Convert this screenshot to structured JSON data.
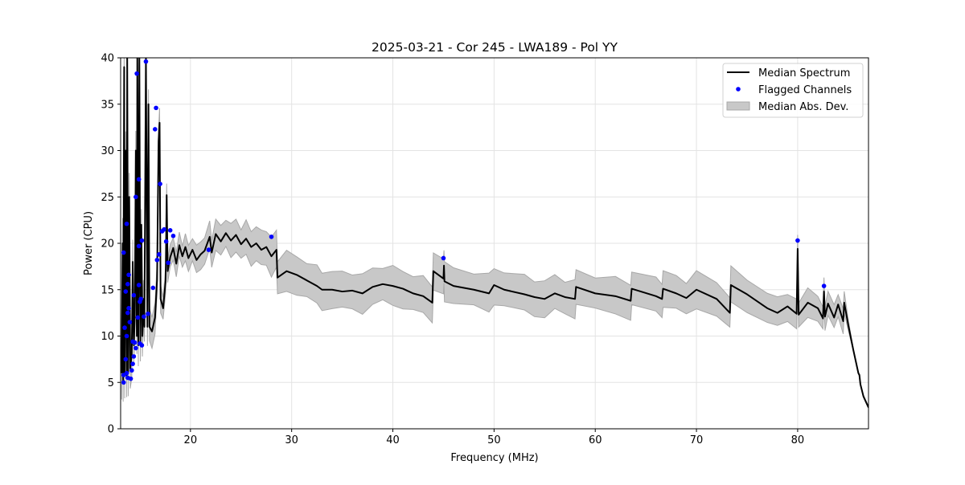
{
  "chart_data": {
    "type": "line",
    "title": "2025-03-21 - Cor 245 - LWA189 - Pol YY",
    "xlabel": "Frequency (MHz)",
    "ylabel": "Power (CPU)",
    "xlim": [
      13.1,
      87.0
    ],
    "ylim": [
      0,
      40
    ],
    "xticks": [
      20,
      30,
      40,
      50,
      60,
      70,
      80
    ],
    "yticks": [
      0,
      5,
      10,
      15,
      20,
      25,
      30,
      35,
      40
    ],
    "grid": true,
    "legend_position": "top-right",
    "legend": [
      "Median Spectrum",
      "Flagged Channels",
      "Median Abs. Dev."
    ],
    "colors": {
      "median": "#000000",
      "flagged": "#0000ff",
      "mad_fill": "#c8c8c8",
      "mad_edge": "#a8a8a8",
      "grid": "#e3e3e3"
    },
    "median_spectrum": [
      [
        13.2,
        6
      ],
      [
        13.3,
        20
      ],
      [
        13.35,
        5
      ],
      [
        13.45,
        39
      ],
      [
        13.5,
        6
      ],
      [
        13.6,
        30
      ],
      [
        13.7,
        5.5
      ],
      [
        13.75,
        40
      ],
      [
        13.85,
        6
      ],
      [
        13.95,
        25
      ],
      [
        14.05,
        6.5
      ],
      [
        14.2,
        8
      ],
      [
        14.3,
        18
      ],
      [
        14.4,
        9
      ],
      [
        14.5,
        12
      ],
      [
        14.6,
        30
      ],
      [
        14.7,
        10
      ],
      [
        14.75,
        40
      ],
      [
        14.85,
        9
      ],
      [
        14.95,
        40
      ],
      [
        15.05,
        9
      ],
      [
        15.15,
        22
      ],
      [
        15.25,
        10
      ],
      [
        15.35,
        14
      ],
      [
        15.45,
        11
      ],
      [
        15.6,
        40
      ],
      [
        15.75,
        11
      ],
      [
        15.85,
        35
      ],
      [
        15.95,
        11
      ],
      [
        16.2,
        10.5
      ],
      [
        16.5,
        12
      ],
      [
        16.7,
        16
      ],
      [
        16.85,
        31
      ],
      [
        16.95,
        33
      ],
      [
        17.05,
        14
      ],
      [
        17.3,
        13
      ],
      [
        17.55,
        16
      ],
      [
        17.65,
        25.2
      ],
      [
        17.75,
        17
      ],
      [
        18.0,
        18.5
      ],
      [
        18.3,
        19.5
      ],
      [
        18.6,
        17.8
      ],
      [
        18.9,
        19.8
      ],
      [
        19.2,
        18.6
      ],
      [
        19.5,
        19.6
      ],
      [
        19.8,
        18.4
      ],
      [
        20.2,
        19.3
      ],
      [
        20.6,
        18.2
      ],
      [
        21.0,
        18.8
      ],
      [
        21.4,
        19.2
      ],
      [
        21.9,
        20.7
      ],
      [
        22.1,
        19
      ],
      [
        22.5,
        21
      ],
      [
        23.0,
        20.2
      ],
      [
        23.5,
        21.1
      ],
      [
        24.0,
        20.3
      ],
      [
        24.5,
        20.9
      ],
      [
        25.0,
        19.9
      ],
      [
        25.5,
        20.5
      ],
      [
        26.0,
        19.6
      ],
      [
        26.5,
        20
      ],
      [
        27.0,
        19.3
      ],
      [
        27.5,
        19.6
      ],
      [
        28.0,
        18.6
      ],
      [
        28.5,
        19.3
      ],
      [
        28.6,
        16.3
      ],
      [
        29.5,
        17
      ],
      [
        30.5,
        16.6
      ],
      [
        31.5,
        16
      ],
      [
        32.5,
        15.4
      ],
      [
        33.0,
        15
      ],
      [
        34.0,
        15
      ],
      [
        35.0,
        14.8
      ],
      [
        36.0,
        14.9
      ],
      [
        37.0,
        14.6
      ],
      [
        38.0,
        15.3
      ],
      [
        39.0,
        15.6
      ],
      [
        40.0,
        15.4
      ],
      [
        41.0,
        15.1
      ],
      [
        42.0,
        14.6
      ],
      [
        43.0,
        14.3
      ],
      [
        43.9,
        13.6
      ],
      [
        44.0,
        17
      ],
      [
        45.0,
        16.2
      ],
      [
        45.05,
        17.6
      ],
      [
        45.1,
        15.9
      ],
      [
        46.0,
        15.4
      ],
      [
        48.0,
        15
      ],
      [
        49.5,
        14.6
      ],
      [
        50.0,
        15.5
      ],
      [
        51.0,
        15
      ],
      [
        53.0,
        14.5
      ],
      [
        54.0,
        14.2
      ],
      [
        55.0,
        14
      ],
      [
        56.0,
        14.6
      ],
      [
        57.0,
        14.2
      ],
      [
        58.0,
        14
      ],
      [
        58.1,
        15.3
      ],
      [
        60.0,
        14.6
      ],
      [
        62.0,
        14.3
      ],
      [
        63.5,
        13.8
      ],
      [
        63.6,
        15.1
      ],
      [
        66.0,
        14.3
      ],
      [
        66.6,
        14
      ],
      [
        66.7,
        15.1
      ],
      [
        68.0,
        14.6
      ],
      [
        69.0,
        14.1
      ],
      [
        70.0,
        15
      ],
      [
        72.0,
        14
      ],
      [
        73.3,
        12.5
      ],
      [
        73.4,
        15.5
      ],
      [
        75.0,
        14.5
      ],
      [
        77.0,
        13
      ],
      [
        78.0,
        12.5
      ],
      [
        79.0,
        13.2
      ],
      [
        79.9,
        12.4
      ],
      [
        80.0,
        19.4
      ],
      [
        80.1,
        12.3
      ],
      [
        81.0,
        13.6
      ],
      [
        82.0,
        13
      ],
      [
        82.5,
        11.9
      ],
      [
        82.6,
        14.8
      ],
      [
        82.7,
        12.1
      ],
      [
        83.0,
        13.5
      ],
      [
        83.6,
        12
      ],
      [
        84.0,
        13.4
      ],
      [
        84.5,
        11.6
      ],
      [
        84.6,
        13.6
      ],
      [
        85.0,
        11.2
      ],
      [
        85.5,
        8.5
      ],
      [
        86.0,
        6
      ],
      [
        86.1,
        5.8
      ],
      [
        86.2,
        4.8
      ],
      [
        86.5,
        3.5
      ],
      [
        87.0,
        2.3
      ]
    ],
    "mad_halfwidth": [
      [
        13.1,
        2.5
      ],
      [
        18.0,
        1.2
      ],
      [
        21.8,
        1.5
      ],
      [
        28.6,
        2.0
      ],
      [
        73.4,
        1.8
      ],
      [
        84.8,
        1.2
      ],
      [
        85.2,
        0.1
      ]
    ],
    "flagged_channels": [
      [
        13.4,
        19.0
      ],
      [
        13.7,
        22.1
      ],
      [
        13.8,
        15.6
      ],
      [
        13.9,
        16.6
      ],
      [
        13.6,
        14.8
      ],
      [
        13.5,
        10.9
      ],
      [
        13.7,
        10
      ],
      [
        13.8,
        12.5
      ],
      [
        13.9,
        13
      ],
      [
        13.6,
        7.5
      ],
      [
        13.7,
        6
      ],
      [
        13.8,
        5.5
      ],
      [
        13.4,
        5.8
      ],
      [
        13.4,
        5.0
      ],
      [
        14.1,
        5.4
      ],
      [
        14.2,
        6.3
      ],
      [
        14.4,
        14.4
      ],
      [
        14.5,
        9.3
      ],
      [
        14.6,
        25
      ],
      [
        14.7,
        38.3
      ],
      [
        14.9,
        26.9
      ],
      [
        14.9,
        19.7
      ],
      [
        14.8,
        12
      ],
      [
        14.9,
        15.5
      ],
      [
        15.1,
        14
      ],
      [
        15.0,
        13.7
      ],
      [
        15.2,
        20.3
      ],
      [
        15.6,
        39.6
      ],
      [
        15.4,
        12.1
      ],
      [
        15.8,
        12.4
      ],
      [
        16.3,
        15.2
      ],
      [
        16.5,
        32.3
      ],
      [
        16.6,
        34.6
      ],
      [
        16.7,
        18.2
      ],
      [
        16.9,
        18.8
      ],
      [
        17.0,
        26.4
      ],
      [
        17.2,
        21.3
      ],
      [
        17.4,
        21.5
      ],
      [
        17.6,
        20.2
      ],
      [
        17.8,
        17.9
      ],
      [
        18.0,
        21.4
      ],
      [
        18.3,
        20.8
      ],
      [
        21.8,
        19.3
      ],
      [
        28.0,
        20.7
      ],
      [
        45.0,
        18.4
      ],
      [
        80.0,
        20.3
      ],
      [
        82.6,
        15.4
      ],
      [
        14.3,
        7.0
      ],
      [
        14.4,
        7.8
      ],
      [
        14.6,
        8.7
      ],
      [
        14.3,
        9.4
      ],
      [
        15.0,
        9.2
      ],
      [
        15.2,
        9.0
      ],
      [
        14.0,
        11.5
      ]
    ]
  }
}
